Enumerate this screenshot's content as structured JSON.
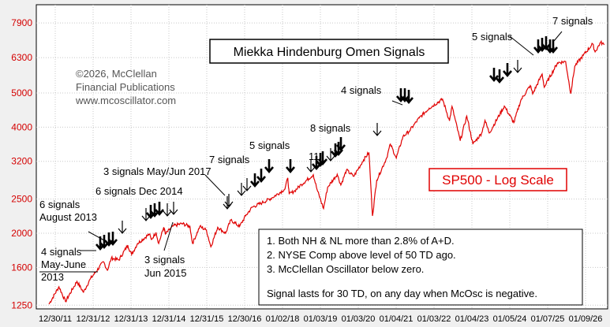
{
  "chart_data": {
    "type": "line",
    "title": "Miekka Hindenburg Omen Signals",
    "series_label": "SP500 - Log Scale",
    "copyright": [
      "©2026, McClellan",
      "Financial Publications",
      "www.mcoscillator.com"
    ],
    "y_scale": "log",
    "ylim": [
      1220,
      8900
    ],
    "y_ticks": [
      1250,
      1600,
      2000,
      2500,
      3200,
      4000,
      5000,
      6300,
      7900
    ],
    "x_ticks": [
      "12/30/11",
      "12/31/12",
      "12/31/13",
      "12/31/14",
      "12/31/15",
      "12/30/16",
      "01/02/18",
      "01/03/19",
      "01/03/20",
      "01/04/21",
      "01/03/22",
      "01/04/23",
      "01/05/24",
      "01/07/25",
      "01/09/26"
    ],
    "xlim": [
      "2011-12-30",
      "2026-02-15"
    ],
    "grid": true,
    "line_color": "#e00000",
    "series": [
      {
        "x": [
          "2011-12-30",
          "2012-04-01",
          "2012-06-01",
          "2012-09-15",
          "2012-11-15",
          "2013-01-15",
          "2013-05-20",
          "2013-06-25",
          "2013-08-01",
          "2013-10-10",
          "2013-12-31",
          "2014-02-05",
          "2014-04-01",
          "2014-07-20",
          "2014-08-07",
          "2014-09-20",
          "2014-10-15",
          "2014-12-01",
          "2014-12-16",
          "2015-03-01",
          "2015-05-20",
          "2015-08-01",
          "2015-08-25",
          "2015-11-01",
          "2016-01-01",
          "2016-02-11",
          "2016-04-15",
          "2016-06-27",
          "2016-08-15",
          "2016-11-04",
          "2016-12-30",
          "2017-03-01",
          "2017-06-01",
          "2017-09-01",
          "2017-12-31",
          "2018-01-26",
          "2018-02-08",
          "2018-04-01",
          "2018-06-01",
          "2018-09-20",
          "2018-10-25",
          "2018-12-24",
          "2019-01-31",
          "2019-04-30",
          "2019-06-03",
          "2019-07-25",
          "2019-10-01",
          "2019-12-31",
          "2020-02-19",
          "2020-03-23",
          "2020-05-01",
          "2020-08-01",
          "2020-09-05",
          "2020-10-30",
          "2020-12-31",
          "2021-03-01",
          "2021-06-01",
          "2021-09-01",
          "2022-01-03",
          "2022-03-08",
          "2022-04-01",
          "2022-06-16",
          "2022-08-16",
          "2022-10-12",
          "2022-12-31",
          "2023-02-01",
          "2023-03-13",
          "2023-07-31",
          "2023-10-27",
          "2023-12-31",
          "2024-03-28",
          "2024-04-19",
          "2024-07-16",
          "2024-08-05",
          "2024-12-06",
          "2025-02-19",
          "2025-04-08",
          "2025-05-15",
          "2025-08-01",
          "2025-10-28",
          "2025-11-20",
          "2026-01-10",
          "2026-02-13"
        ],
        "y": [
          1258,
          1410,
          1280,
          1460,
          1360,
          1480,
          1660,
          1570,
          1700,
          1680,
          1850,
          1740,
          1870,
          1990,
          1920,
          2010,
          1870,
          2080,
          1990,
          2100,
          2130,
          2090,
          1870,
          2090,
          2040,
          1830,
          2080,
          2000,
          2180,
          2090,
          2240,
          2370,
          2440,
          2520,
          2670,
          2870,
          2580,
          2640,
          2750,
          2930,
          2660,
          2350,
          2700,
          2940,
          2740,
          3020,
          2900,
          3230,
          3390,
          2240,
          2830,
          3270,
          3580,
          3270,
          3760,
          3900,
          4250,
          4530,
          4800,
          4170,
          4580,
          3660,
          4300,
          3580,
          3840,
          4180,
          3850,
          4590,
          4120,
          4770,
          5250,
          4970,
          5660,
          5190,
          6090,
          6140,
          4980,
          5960,
          6390,
          6890,
          6540,
          6960,
          6850
        ]
      }
    ],
    "signal_annotations": [
      {
        "label": "4 signals",
        "lines": [
          "4 signals",
          "May-June",
          "2013"
        ]
      },
      {
        "label": "6 signals",
        "lines": [
          "6 signals",
          "August 2013"
        ]
      },
      {
        "label": "6 signals Dec 2014",
        "lines": [
          "6 signals Dec 2014"
        ]
      },
      {
        "label": "3 signals",
        "lines": [
          "3 signals",
          "Jun 2015"
        ]
      },
      {
        "label": "3 signals May/Jun 2017",
        "lines": [
          "3 signals May/Jun 2017"
        ]
      },
      {
        "label": "7 signals",
        "lines": [
          "7 signals"
        ]
      },
      {
        "label": "5 signals",
        "lines": [
          "5 signals"
        ]
      },
      {
        "label": "11",
        "lines": [
          "11"
        ]
      },
      {
        "label": "8 signals",
        "lines": [
          "8 signals"
        ]
      },
      {
        "label": "4 signals",
        "lines": [
          "4 signals"
        ]
      },
      {
        "label": "5 signals",
        "lines": [
          "5 signals"
        ]
      },
      {
        "label": "7 signals",
        "lines": [
          "7 signals"
        ]
      }
    ],
    "notes": [
      "1. Both NH & NL more than 2.8% of A+D.",
      "2. NYSE Comp above level of 50 TD ago.",
      "3. McClellan Oscillator below zero.",
      "Signal lasts for 30 TD, on any day when McOsc is negative."
    ]
  }
}
